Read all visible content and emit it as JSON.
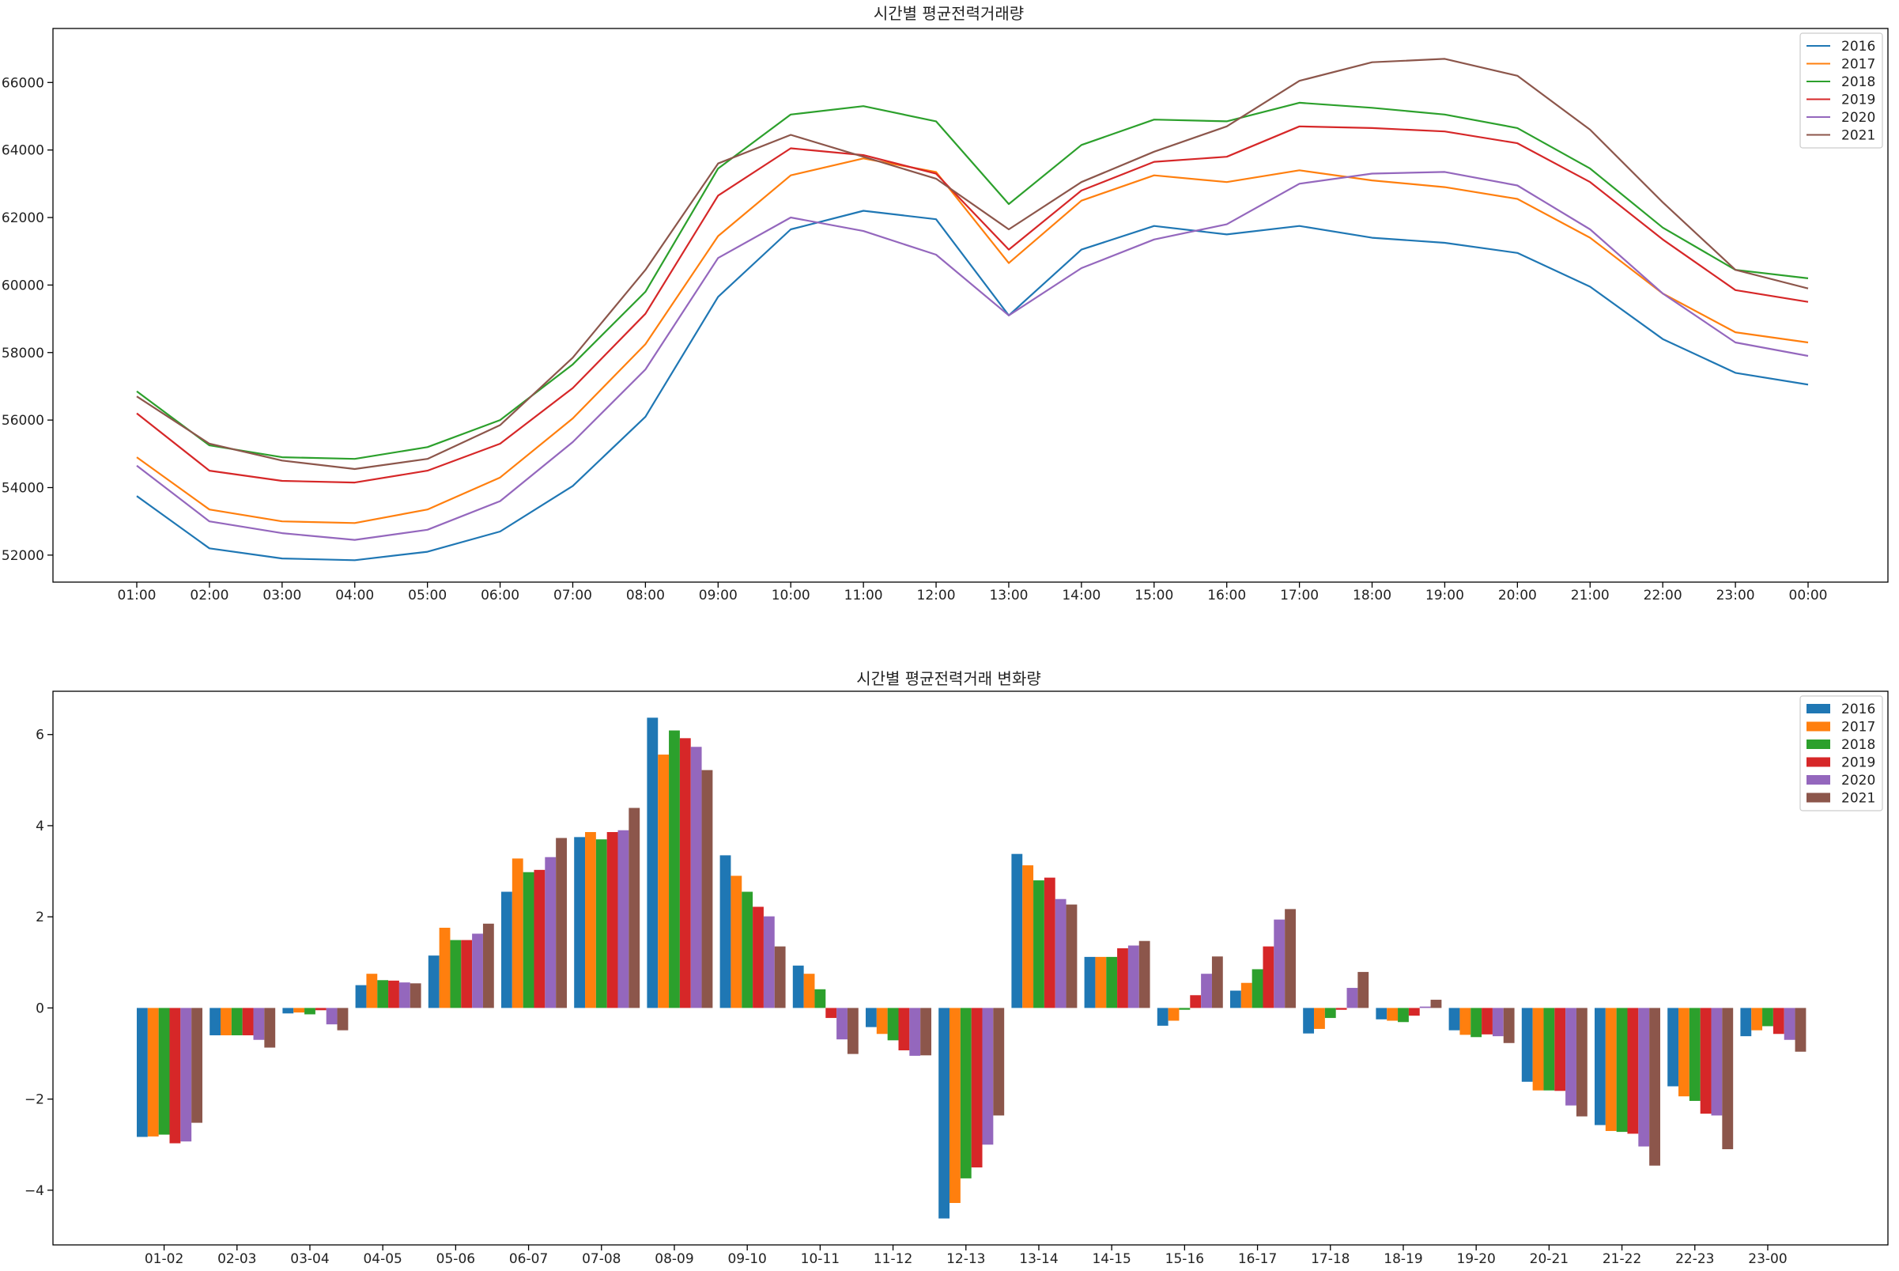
{
  "colors": [
    "#1f77b4",
    "#ff7f0e",
    "#2ca02c",
    "#d62728",
    "#9467bd",
    "#8c564b"
  ],
  "chart_data": [
    {
      "type": "line",
      "title": "시간별 평균전력거래량",
      "xlabel": "",
      "ylabel": "",
      "categories": [
        "01:00",
        "02:00",
        "03:00",
        "04:00",
        "05:00",
        "06:00",
        "07:00",
        "08:00",
        "09:00",
        "10:00",
        "11:00",
        "12:00",
        "13:00",
        "14:00",
        "15:00",
        "16:00",
        "17:00",
        "18:00",
        "19:00",
        "20:00",
        "21:00",
        "22:00",
        "23:00",
        "00:00"
      ],
      "ylim": [
        51200,
        67600
      ],
      "yticks": [
        52000,
        54000,
        56000,
        58000,
        60000,
        62000,
        64000,
        66000
      ],
      "legend": "top-right",
      "grid": false,
      "series": [
        {
          "name": "2016",
          "values": [
            53750,
            52200,
            51900,
            51850,
            52100,
            52700,
            54050,
            56100,
            59650,
            61650,
            62200,
            61950,
            59100,
            61050,
            61750,
            61500,
            61750,
            61400,
            61250,
            60950,
            59950,
            58400,
            57400,
            57050
          ]
        },
        {
          "name": "2017",
          "values": [
            54900,
            53350,
            53000,
            52950,
            53350,
            54300,
            56050,
            58250,
            61450,
            63250,
            63750,
            63350,
            60650,
            62500,
            63250,
            63050,
            63400,
            63100,
            62900,
            62550,
            61400,
            59750,
            58600,
            58300
          ]
        },
        {
          "name": "2018",
          "values": [
            56850,
            55250,
            54900,
            54850,
            55200,
            56000,
            57650,
            59800,
            63450,
            65050,
            65300,
            64850,
            62400,
            64150,
            64900,
            64850,
            65400,
            65250,
            65050,
            64650,
            63450,
            61700,
            60450,
            60200
          ]
        },
        {
          "name": "2019",
          "values": [
            56200,
            54500,
            54200,
            54150,
            54500,
            55300,
            56950,
            59150,
            62650,
            64050,
            63850,
            63300,
            61050,
            62800,
            63650,
            63800,
            64700,
            64650,
            64550,
            64200,
            63050,
            61350,
            59850,
            59500
          ]
        },
        {
          "name": "2020",
          "values": [
            54650,
            53000,
            52650,
            52450,
            52750,
            53600,
            55350,
            57500,
            60800,
            62000,
            61600,
            60900,
            59100,
            60500,
            61350,
            61800,
            63000,
            63300,
            63350,
            62950,
            61650,
            59750,
            58300,
            57900
          ]
        },
        {
          "name": "2021",
          "values": [
            56700,
            55300,
            54800,
            54550,
            54850,
            55850,
            57850,
            60450,
            63600,
            64450,
            63800,
            63150,
            61650,
            63050,
            63950,
            64700,
            66050,
            66600,
            66700,
            66200,
            64600,
            62450,
            60450,
            59900
          ]
        }
      ]
    },
    {
      "type": "bar",
      "title": "시간별 평균전력거래 변화량",
      "xlabel": "",
      "ylabel": "",
      "categories": [
        "01-02",
        "02-03",
        "03-04",
        "04-05",
        "05-06",
        "06-07",
        "07-08",
        "08-09",
        "09-10",
        "10-11",
        "11-12",
        "12-13",
        "13-14",
        "14-15",
        "15-16",
        "16-17",
        "17-18",
        "18-19",
        "19-20",
        "20-21",
        "21-22",
        "22-23",
        "23-00"
      ],
      "ylim": [
        -5.2,
        6.95
      ],
      "yticks": [
        -4,
        -2,
        0,
        2,
        4,
        6
      ],
      "legend": "top-right",
      "grid": false,
      "series": [
        {
          "name": "2016",
          "values": [
            -2.83,
            -0.6,
            -0.12,
            0.5,
            1.15,
            2.55,
            3.75,
            6.37,
            3.35,
            0.93,
            -0.42,
            -4.62,
            3.38,
            1.12,
            -0.39,
            0.38,
            -0.56,
            -0.25,
            -0.49,
            -1.62,
            -2.57,
            -1.72,
            -0.62
          ]
        },
        {
          "name": "2017",
          "values": [
            -2.82,
            -0.6,
            -0.1,
            0.75,
            1.76,
            3.28,
            3.86,
            5.56,
            2.9,
            0.75,
            -0.57,
            -4.28,
            3.13,
            1.12,
            -0.28,
            0.55,
            -0.46,
            -0.28,
            -0.59,
            -1.81,
            -2.7,
            -1.94,
            -0.49
          ]
        },
        {
          "name": "2018",
          "values": [
            -2.78,
            -0.6,
            -0.14,
            0.61,
            1.49,
            2.98,
            3.7,
            6.09,
            2.55,
            0.41,
            -0.71,
            -3.74,
            2.8,
            1.12,
            -0.04,
            0.85,
            -0.22,
            -0.31,
            -0.64,
            -1.81,
            -2.72,
            -2.04,
            -0.4
          ]
        },
        {
          "name": "2019",
          "values": [
            -2.97,
            -0.6,
            -0.05,
            0.6,
            1.49,
            3.03,
            3.86,
            5.92,
            2.22,
            -0.22,
            -0.93,
            -3.5,
            2.86,
            1.31,
            0.28,
            1.35,
            -0.04,
            -0.17,
            -0.58,
            -1.82,
            -2.76,
            -2.32,
            -0.57
          ]
        },
        {
          "name": "2020",
          "values": [
            -2.93,
            -0.7,
            -0.36,
            0.56,
            1.63,
            3.31,
            3.9,
            5.73,
            2.01,
            -0.69,
            -1.05,
            -3.0,
            2.39,
            1.37,
            0.75,
            1.94,
            0.44,
            0.03,
            -0.62,
            -2.14,
            -3.04,
            -2.36,
            -0.7
          ]
        },
        {
          "name": "2021",
          "values": [
            -2.52,
            -0.87,
            -0.49,
            0.54,
            1.85,
            3.73,
            4.39,
            5.22,
            1.35,
            -1.01,
            -1.04,
            -2.36,
            2.27,
            1.47,
            1.13,
            2.17,
            0.79,
            0.18,
            -0.77,
            -2.38,
            -3.46,
            -3.1,
            -0.96
          ]
        }
      ]
    }
  ]
}
